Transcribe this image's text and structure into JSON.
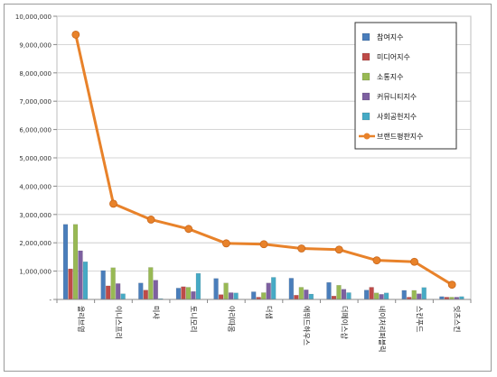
{
  "chart_data": {
    "type": "bar",
    "title": "",
    "xlabel": "",
    "ylabel": "",
    "ylim": [
      0,
      10000000
    ],
    "yticks": [
      0,
      1000000,
      2000000,
      3000000,
      4000000,
      5000000,
      6000000,
      7000000,
      8000000,
      9000000,
      10000000
    ],
    "ytick_labels": [
      "-",
      "1,000,000",
      "2,000,000",
      "3,000,000",
      "4,000,000",
      "5,000,000",
      "6,000,000",
      "7,000,000",
      "8,000,000",
      "9,000,000",
      "10,000,000"
    ],
    "grid": true,
    "legend_position": "top-right",
    "categories": [
      "올리브영",
      "이니스프리",
      "미샤",
      "토니모리",
      "아리따움",
      "더샘",
      "에뛰드하우스",
      "더페이스샵",
      "네이처리퍼블릭",
      "스킨푸드",
      "잇츠스킨"
    ],
    "series": [
      {
        "name": "참여지수",
        "kind": "bar",
        "color": "#4a7ebb",
        "values": [
          2650000,
          1020000,
          580000,
          400000,
          740000,
          270000,
          750000,
          600000,
          330000,
          320000,
          100000
        ]
      },
      {
        "name": "미디어지수",
        "kind": "bar",
        "color": "#be4b48",
        "values": [
          1080000,
          480000,
          330000,
          450000,
          170000,
          80000,
          150000,
          120000,
          430000,
          80000,
          80000
        ]
      },
      {
        "name": "소통지수",
        "kind": "bar",
        "color": "#98b954",
        "values": [
          2650000,
          1120000,
          1130000,
          430000,
          580000,
          240000,
          430000,
          500000,
          230000,
          320000,
          80000
        ]
      },
      {
        "name": "커뮤니티지수",
        "kind": "bar",
        "color": "#7d60a0",
        "values": [
          1720000,
          560000,
          680000,
          280000,
          240000,
          580000,
          340000,
          360000,
          180000,
          200000,
          80000
        ]
      },
      {
        "name": "사회공헌지수",
        "kind": "bar",
        "color": "#46aac5",
        "values": [
          1330000,
          200000,
          30000,
          920000,
          230000,
          780000,
          190000,
          240000,
          230000,
          420000,
          100000
        ]
      },
      {
        "name": "브랜드평판지수",
        "kind": "line",
        "color": "#e8822a",
        "values": [
          9350000,
          3380000,
          2820000,
          2490000,
          1980000,
          1950000,
          1800000,
          1760000,
          1380000,
          1330000,
          520000
        ]
      }
    ]
  }
}
